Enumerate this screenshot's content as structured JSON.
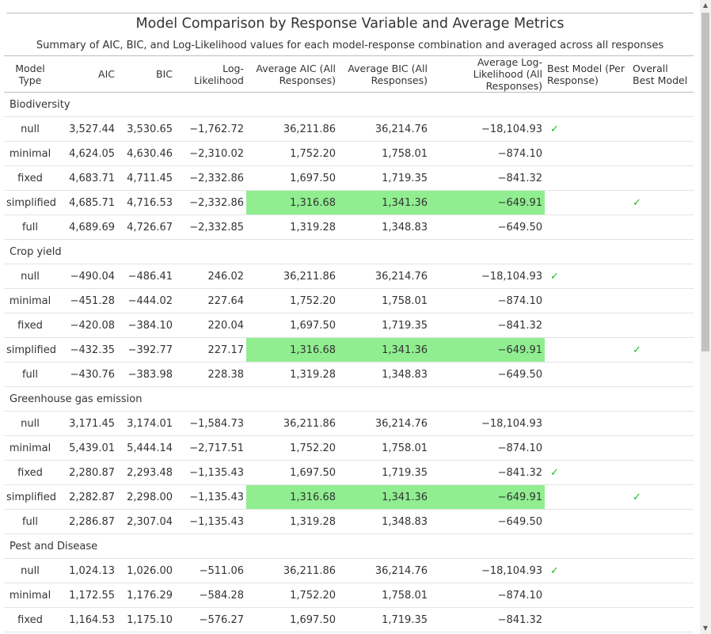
{
  "title": "Model Comparison by Response Variable and Average Metrics",
  "subtitle": "Summary of AIC, BIC, and Log-Likelihood values for each model-response combination and averaged across all responses",
  "icons": {
    "check": "✓",
    "scroll_up": "▲",
    "scroll_down": "▼",
    "check_color": "#22bb22",
    "highlight_color": "#90ee90"
  },
  "columns": [
    "Model Type",
    "AIC",
    "BIC",
    "Log-Likelihood",
    "Average AIC (All Responses)",
    "Average BIC (All Responses)",
    "Average Log-Likelihood (All Responses)",
    "Best Model (Per Response)",
    "Overall Best Model"
  ],
  "groups": [
    {
      "name": "Biodiversity",
      "rows": [
        {
          "model": "null",
          "aic": "3,527.44",
          "bic": "3,530.65",
          "ll": "−1,762.72",
          "avg_aic": "36,211.86",
          "avg_bic": "36,214.76",
          "avg_ll": "−18,104.93",
          "best": true,
          "overall": false,
          "highlight": false
        },
        {
          "model": "minimal",
          "aic": "4,624.05",
          "bic": "4,630.46",
          "ll": "−2,310.02",
          "avg_aic": "1,752.20",
          "avg_bic": "1,758.01",
          "avg_ll": "−874.10",
          "best": false,
          "overall": false,
          "highlight": false
        },
        {
          "model": "fixed",
          "aic": "4,683.71",
          "bic": "4,711.45",
          "ll": "−2,332.86",
          "avg_aic": "1,697.50",
          "avg_bic": "1,719.35",
          "avg_ll": "−841.32",
          "best": false,
          "overall": false,
          "highlight": false
        },
        {
          "model": "simplified",
          "aic": "4,685.71",
          "bic": "4,716.53",
          "ll": "−2,332.86",
          "avg_aic": "1,316.68",
          "avg_bic": "1,341.36",
          "avg_ll": "−649.91",
          "best": false,
          "overall": true,
          "highlight": true
        },
        {
          "model": "full",
          "aic": "4,689.69",
          "bic": "4,726.67",
          "ll": "−2,332.85",
          "avg_aic": "1,319.28",
          "avg_bic": "1,348.83",
          "avg_ll": "−649.50",
          "best": false,
          "overall": false,
          "highlight": false
        }
      ]
    },
    {
      "name": "Crop yield",
      "rows": [
        {
          "model": "null",
          "aic": "−490.04",
          "bic": "−486.41",
          "ll": "246.02",
          "avg_aic": "36,211.86",
          "avg_bic": "36,214.76",
          "avg_ll": "−18,104.93",
          "best": true,
          "overall": false,
          "highlight": false
        },
        {
          "model": "minimal",
          "aic": "−451.28",
          "bic": "−444.02",
          "ll": "227.64",
          "avg_aic": "1,752.20",
          "avg_bic": "1,758.01",
          "avg_ll": "−874.10",
          "best": false,
          "overall": false,
          "highlight": false
        },
        {
          "model": "fixed",
          "aic": "−420.08",
          "bic": "−384.10",
          "ll": "220.04",
          "avg_aic": "1,697.50",
          "avg_bic": "1,719.35",
          "avg_ll": "−841.32",
          "best": false,
          "overall": false,
          "highlight": false
        },
        {
          "model": "simplified",
          "aic": "−432.35",
          "bic": "−392.77",
          "ll": "227.17",
          "avg_aic": "1,316.68",
          "avg_bic": "1,341.36",
          "avg_ll": "−649.91",
          "best": false,
          "overall": true,
          "highlight": true
        },
        {
          "model": "full",
          "aic": "−430.76",
          "bic": "−383.98",
          "ll": "228.38",
          "avg_aic": "1,319.28",
          "avg_bic": "1,348.83",
          "avg_ll": "−649.50",
          "best": false,
          "overall": false,
          "highlight": false
        }
      ]
    },
    {
      "name": "Greenhouse gas emission",
      "rows": [
        {
          "model": "null",
          "aic": "3,171.45",
          "bic": "3,174.01",
          "ll": "−1,584.73",
          "avg_aic": "36,211.86",
          "avg_bic": "36,214.76",
          "avg_ll": "−18,104.93",
          "best": false,
          "overall": false,
          "highlight": false
        },
        {
          "model": "minimal",
          "aic": "5,439.01",
          "bic": "5,444.14",
          "ll": "−2,717.51",
          "avg_aic": "1,752.20",
          "avg_bic": "1,758.01",
          "avg_ll": "−874.10",
          "best": false,
          "overall": false,
          "highlight": false
        },
        {
          "model": "fixed",
          "aic": "2,280.87",
          "bic": "2,293.48",
          "ll": "−1,135.43",
          "avg_aic": "1,697.50",
          "avg_bic": "1,719.35",
          "avg_ll": "−841.32",
          "best": true,
          "overall": false,
          "highlight": false
        },
        {
          "model": "simplified",
          "aic": "2,282.87",
          "bic": "2,298.00",
          "ll": "−1,135.43",
          "avg_aic": "1,316.68",
          "avg_bic": "1,341.36",
          "avg_ll": "−649.91",
          "best": false,
          "overall": true,
          "highlight": true
        },
        {
          "model": "full",
          "aic": "2,286.87",
          "bic": "2,307.04",
          "ll": "−1,135.43",
          "avg_aic": "1,319.28",
          "avg_bic": "1,348.83",
          "avg_ll": "−649.50",
          "best": false,
          "overall": false,
          "highlight": false
        }
      ]
    },
    {
      "name": "Pest and Disease",
      "rows": [
        {
          "model": "null",
          "aic": "1,024.13",
          "bic": "1,026.00",
          "ll": "−511.06",
          "avg_aic": "36,211.86",
          "avg_bic": "36,214.76",
          "avg_ll": "−18,104.93",
          "best": true,
          "overall": false,
          "highlight": false
        },
        {
          "model": "minimal",
          "aic": "1,172.55",
          "bic": "1,176.29",
          "ll": "−584.28",
          "avg_aic": "1,752.20",
          "avg_bic": "1,758.01",
          "avg_ll": "−874.10",
          "best": false,
          "overall": false,
          "highlight": false
        },
        {
          "model": "fixed",
          "aic": "1,164.53",
          "bic": "1,175.10",
          "ll": "−576.27",
          "avg_aic": "1,697.50",
          "avg_bic": "1,719.35",
          "avg_ll": "−841.32",
          "best": false,
          "overall": false,
          "highlight": false
        }
      ]
    }
  ]
}
